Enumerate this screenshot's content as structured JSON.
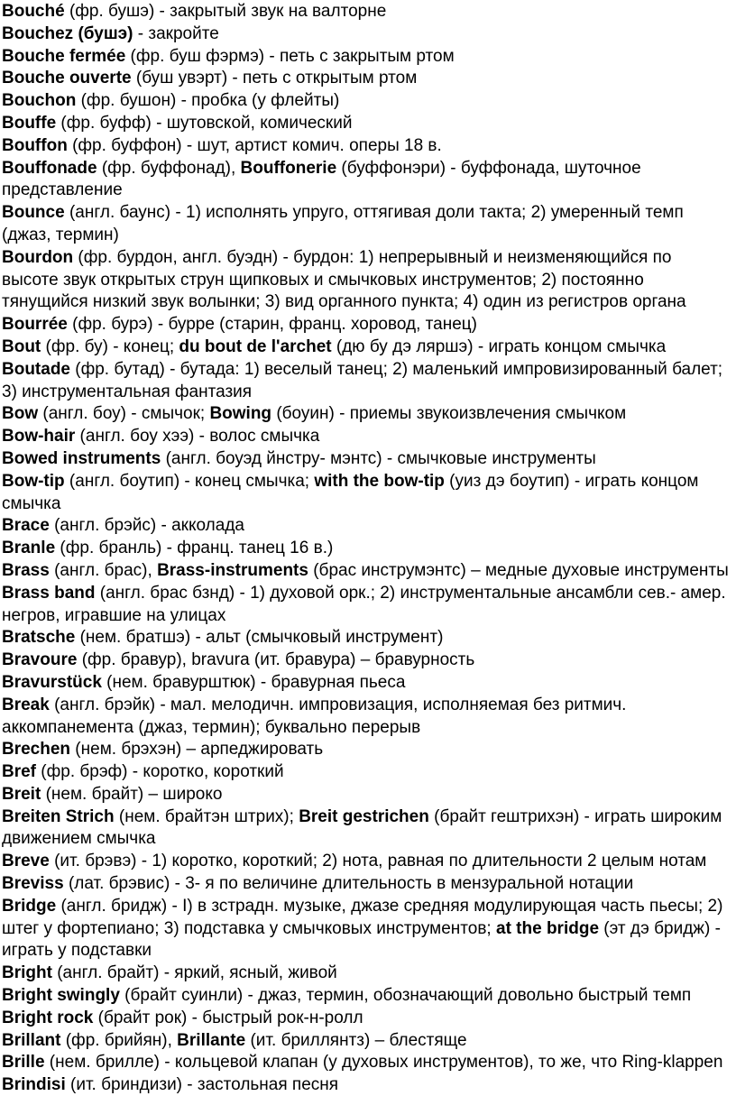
{
  "page": {
    "background_color": "#ffffff",
    "text_color": "#000000"
  },
  "document": {
    "kind": "dictionary-page",
    "lines": [
      {
        "segments": [
          {
            "bold": true,
            "text": "Bouché"
          },
          {
            "bold": false,
            "text": " (фр. бушэ) - закрытый звук на валторне"
          }
        ]
      },
      {
        "segments": [
          {
            "bold": true,
            "text": "Bouchez (бушэ)"
          },
          {
            "bold": false,
            "text": " - закройте"
          }
        ]
      },
      {
        "segments": [
          {
            "bold": true,
            "text": "Bouche fermée"
          },
          {
            "bold": false,
            "text": " (фр. буш фэрмэ) - петь с закрытым ртом"
          }
        ]
      },
      {
        "segments": [
          {
            "bold": true,
            "text": "Bouche ouverte"
          },
          {
            "bold": false,
            "text": " (буш увэрт) - петь с открытым ртом"
          }
        ]
      },
      {
        "segments": [
          {
            "bold": true,
            "text": "Bouchon"
          },
          {
            "bold": false,
            "text": " (фр. бушон) - пробка (у флейты)"
          }
        ]
      },
      {
        "segments": [
          {
            "bold": true,
            "text": "Bouffe"
          },
          {
            "bold": false,
            "text": " (фр. буфф) - шутовской, комический"
          }
        ]
      },
      {
        "segments": [
          {
            "bold": true,
            "text": "Bouffon"
          },
          {
            "bold": false,
            "text": " (фр. буффон) - шут, артист комич. оперы 18 в."
          }
        ]
      },
      {
        "segments": [
          {
            "bold": true,
            "text": "Bouffonade"
          },
          {
            "bold": false,
            "text": " (фр. буффонад), "
          },
          {
            "bold": true,
            "text": "Bouffonerie"
          },
          {
            "bold": false,
            "text": " (буффонэри) - буффонада, шуточное"
          }
        ]
      },
      {
        "segments": [
          {
            "bold": false,
            "text": "представление"
          }
        ]
      },
      {
        "segments": [
          {
            "bold": true,
            "text": "Bounce"
          },
          {
            "bold": false,
            "text": " (англ. баунс) - 1) исполнять упруго, оттягивая доли такта; 2) умеренный темп"
          }
        ]
      },
      {
        "segments": [
          {
            "bold": false,
            "text": "(джаз, термин)"
          }
        ]
      },
      {
        "segments": [
          {
            "bold": true,
            "text": "Bourdon"
          },
          {
            "bold": false,
            "text": " (фр. бурдон, англ. буэдн) - бурдон: 1) непрерывный и неизменяющийся по"
          }
        ]
      },
      {
        "segments": [
          {
            "bold": false,
            "text": "высоте звук открытых струн щипковых и смычковых инструментов; 2) постоянно"
          }
        ]
      },
      {
        "segments": [
          {
            "bold": false,
            "text": "тянущийся низкий звук волынки; 3) вид органного пункта; 4) один из регистров органа"
          }
        ]
      },
      {
        "segments": [
          {
            "bold": true,
            "text": "Bourrée"
          },
          {
            "bold": false,
            "text": " (фр. бурэ) - бурре (старин, франц. хоровод, танец)"
          }
        ]
      },
      {
        "segments": [
          {
            "bold": true,
            "text": "Bout"
          },
          {
            "bold": false,
            "text": " (фр. бу) - конец; "
          },
          {
            "bold": true,
            "text": "du bout de l'archet"
          },
          {
            "bold": false,
            "text": " (дю бу дэ ляршэ) - играть концом смычка"
          }
        ]
      },
      {
        "segments": [
          {
            "bold": true,
            "text": "Boutade"
          },
          {
            "bold": false,
            "text": " (фр. бутад) - бутада: 1) веселый танец; 2) маленький импровизированный балет;"
          }
        ]
      },
      {
        "segments": [
          {
            "bold": false,
            "text": "3) инструментальная фантазия"
          }
        ]
      },
      {
        "segments": [
          {
            "bold": true,
            "text": "Bow"
          },
          {
            "bold": false,
            "text": " (англ. боу) - смычок; "
          },
          {
            "bold": true,
            "text": "Bowing"
          },
          {
            "bold": false,
            "text": " (боуин) - приемы звукоизвлечения смычком"
          }
        ]
      },
      {
        "segments": [
          {
            "bold": true,
            "text": "Bow-hair"
          },
          {
            "bold": false,
            "text": " (англ. боу хээ) - волос смычка"
          }
        ]
      },
      {
        "segments": [
          {
            "bold": true,
            "text": "Bowed instruments"
          },
          {
            "bold": false,
            "text": " (англ. боуэд йнстру- мэнтс) - смычковые инструменты"
          }
        ]
      },
      {
        "segments": [
          {
            "bold": true,
            "text": "Bow-tip"
          },
          {
            "bold": false,
            "text": " (англ. боутип) - конец смычка; "
          },
          {
            "bold": true,
            "text": "with the bow-tip"
          },
          {
            "bold": false,
            "text": " (уиз дэ боутип) - играть концом"
          }
        ]
      },
      {
        "segments": [
          {
            "bold": false,
            "text": "смычка"
          }
        ]
      },
      {
        "segments": [
          {
            "bold": true,
            "text": "Brace"
          },
          {
            "bold": false,
            "text": " (англ. брэйс) - акколада"
          }
        ]
      },
      {
        "segments": [
          {
            "bold": true,
            "text": "Branle"
          },
          {
            "bold": false,
            "text": " (фр. бранль) - франц. танец 16 в.)"
          }
        ]
      },
      {
        "segments": [
          {
            "bold": true,
            "text": "Brass"
          },
          {
            "bold": false,
            "text": " (англ. брас), "
          },
          {
            "bold": true,
            "text": "Brass-instruments"
          },
          {
            "bold": false,
            "text": " (брас инструмэнтс) – медные духовые инструменты"
          }
        ]
      },
      {
        "segments": [
          {
            "bold": true,
            "text": "Brass band"
          },
          {
            "bold": false,
            "text": " (англ. брас бзнд) - 1) духовой орк.; 2) инструментальные ансамбли сев.- амер."
          }
        ]
      },
      {
        "segments": [
          {
            "bold": false,
            "text": "негров, игравшие на улицах"
          }
        ]
      },
      {
        "segments": [
          {
            "bold": true,
            "text": "Bratsche"
          },
          {
            "bold": false,
            "text": " (нем. братшэ) - альт (смычковый инструмент)"
          }
        ]
      },
      {
        "segments": [
          {
            "bold": true,
            "text": "Bravoure"
          },
          {
            "bold": false,
            "text": " (фр. бравур), bravura (ит. бравура) – бравурность"
          }
        ]
      },
      {
        "segments": [
          {
            "bold": true,
            "text": "Bravurstück"
          },
          {
            "bold": false,
            "text": " (нем. бравурштюк) - бравурная пьеса"
          }
        ]
      },
      {
        "segments": [
          {
            "bold": true,
            "text": "Break"
          },
          {
            "bold": false,
            "text": " (англ. брэйк) - мал. мелодичн. импровизация, исполняемая без ритмич."
          }
        ]
      },
      {
        "segments": [
          {
            "bold": false,
            "text": "аккомпанемента (джаз, термин); буквально перерыв"
          }
        ]
      },
      {
        "segments": [
          {
            "bold": true,
            "text": "Brechen"
          },
          {
            "bold": false,
            "text": " (нем. брэхэн) – арпеджировать"
          }
        ]
      },
      {
        "segments": [
          {
            "bold": true,
            "text": "Bref"
          },
          {
            "bold": false,
            "text": " (фр. брэф) - коротко, короткий"
          }
        ]
      },
      {
        "segments": [
          {
            "bold": true,
            "text": "Breit"
          },
          {
            "bold": false,
            "text": " (нем. брайт) – широко"
          }
        ]
      },
      {
        "segments": [
          {
            "bold": true,
            "text": "Breiten Strich"
          },
          {
            "bold": false,
            "text": " (нем. брайтэн штрих); "
          },
          {
            "bold": true,
            "text": "Breit gestrichen"
          },
          {
            "bold": false,
            "text": " (брайт гештрихэн) - играть широким"
          }
        ]
      },
      {
        "segments": [
          {
            "bold": false,
            "text": "движением смычка"
          }
        ]
      },
      {
        "segments": [
          {
            "bold": true,
            "text": "Breve"
          },
          {
            "bold": false,
            "text": " (ит. брэвэ) - 1) коротко, короткий; 2) нота, равная по длительности 2 целым нотам"
          }
        ]
      },
      {
        "segments": [
          {
            "bold": true,
            "text": "Breviss"
          },
          {
            "bold": false,
            "text": " (лат. брэвис) - 3- я по величине длительность в мензуральной нотации"
          }
        ]
      },
      {
        "segments": [
          {
            "bold": true,
            "text": "Bridge"
          },
          {
            "bold": false,
            "text": " (англ. бридж) - I) в зстрадн. музыке, джазе средняя модулирующая часть пьесы; 2)"
          }
        ]
      },
      {
        "segments": [
          {
            "bold": false,
            "text": "штег у фортепиано; 3) подставка у смычковых инструментов; "
          },
          {
            "bold": true,
            "text": "at the bridge"
          },
          {
            "bold": false,
            "text": " (эт дэ бридж) -"
          }
        ]
      },
      {
        "segments": [
          {
            "bold": false,
            "text": "играть у подставки"
          }
        ]
      },
      {
        "segments": [
          {
            "bold": true,
            "text": "Bright"
          },
          {
            "bold": false,
            "text": " (англ. брайт) - яркий, ясный, живой"
          }
        ]
      },
      {
        "segments": [
          {
            "bold": true,
            "text": "Bright swingly"
          },
          {
            "bold": false,
            "text": " (брайт суинли) - джаз, термин, обозначающий довольно быстрый темп"
          }
        ]
      },
      {
        "segments": [
          {
            "bold": true,
            "text": "Bright rock"
          },
          {
            "bold": false,
            "text": " (брайт рок) - быстрый рок-н-ролл"
          }
        ]
      },
      {
        "segments": [
          {
            "bold": true,
            "text": "Brillant"
          },
          {
            "bold": false,
            "text": " (фр. брийян), "
          },
          {
            "bold": true,
            "text": "Brillante"
          },
          {
            "bold": false,
            "text": " (ит. бриллянтз) – блестяще"
          }
        ]
      },
      {
        "segments": [
          {
            "bold": true,
            "text": "Brille"
          },
          {
            "bold": false,
            "text": " (нем. брилле) - кольцевой клапан (у духовых инструментов), то же, что Ring-klappen"
          }
        ]
      },
      {
        "segments": [
          {
            "bold": true,
            "text": "Brindisi"
          },
          {
            "bold": false,
            "text": " (ит. бриндизи) - застольная песня"
          }
        ]
      }
    ]
  }
}
